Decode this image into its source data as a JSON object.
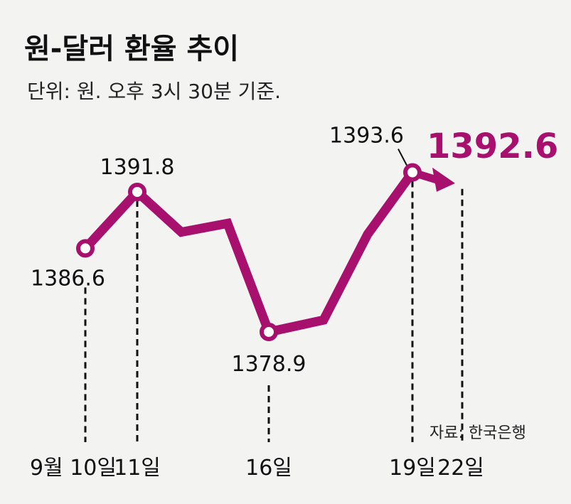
{
  "chart_data": {
    "type": "line",
    "title": "원-달러 환율 추이",
    "subtitle": "단위: 원. 오후 3시 30분 기준.",
    "source": "자료: 한국은행",
    "accent_color": "#a8106e",
    "series": [
      {
        "name": "원-달러 환율",
        "points": [
          {
            "x_label": "9월 10일",
            "value": 1386.6,
            "label": "1386.6"
          },
          {
            "x_label": "11일",
            "value": 1391.8,
            "label": "1391.8"
          },
          {
            "x_label": null,
            "value": 1388.1,
            "label": null
          },
          {
            "x_label": null,
            "value": 1388.9,
            "label": null
          },
          {
            "x_label": "16일",
            "value": 1378.9,
            "label": "1378.9"
          },
          {
            "x_label": null,
            "value": 1380.0,
            "label": null
          },
          {
            "x_label": null,
            "value": 1387.9,
            "label": null
          },
          {
            "x_label": "19일",
            "value": 1393.6,
            "label": "1393.6"
          }
        ],
        "latest": {
          "x_label": "22일",
          "value": 1392.6,
          "label": "1392.6"
        }
      }
    ],
    "ylim": [
      1375,
      1398
    ],
    "grid": false
  }
}
